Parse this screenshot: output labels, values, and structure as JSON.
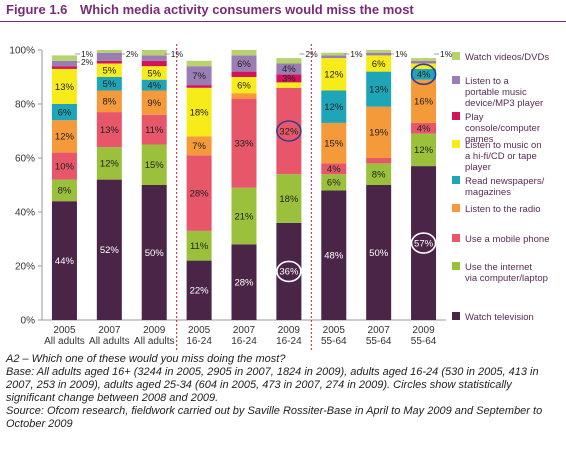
{
  "figure": {
    "number": "Figure 1.6",
    "title": "Which media activity consumers would miss the most"
  },
  "chart_data": {
    "type": "bar",
    "stacked": true,
    "ylim": [
      0,
      100
    ],
    "yticks": [
      "0%",
      "20%",
      "40%",
      "60%",
      "80%",
      "100%"
    ],
    "categories": [
      [
        "2005",
        "All adults"
      ],
      [
        "2007",
        "All adults"
      ],
      [
        "2009",
        "All adults"
      ],
      [
        "2005",
        "16-24"
      ],
      [
        "2007",
        "16-24"
      ],
      [
        "2009",
        "16-24"
      ],
      [
        "2005",
        "55-64"
      ],
      [
        "2007",
        "55-64"
      ],
      [
        "2009",
        "55-64"
      ]
    ],
    "series": [
      {
        "name": "Watch television",
        "color": "#4a2547",
        "values": [
          44,
          52,
          50,
          22,
          28,
          36,
          48,
          50,
          57
        ],
        "labels": [
          "44%",
          "52%",
          "50%",
          "22%",
          "28%",
          "36%",
          "48%",
          "50%",
          "57%"
        ]
      },
      {
        "name": "Use the internet via computer/laptop",
        "color": "#9bc13c",
        "values": [
          8,
          12,
          15,
          11,
          21,
          18,
          6,
          8,
          12
        ],
        "labels": [
          "8%",
          "12%",
          "15%",
          "11%",
          "21%",
          "18%",
          "6%",
          "8%",
          "12%"
        ]
      },
      {
        "name": "Use a mobile phone",
        "color": "#e8566a",
        "values": [
          10,
          13,
          11,
          28,
          33,
          32,
          4,
          2,
          4
        ],
        "labels": [
          "10%",
          "13%",
          "11%",
          "28%",
          "33%",
          "32%",
          "4%",
          "2%",
          "4%"
        ]
      },
      {
        "name": "Listen to the radio",
        "color": "#f59a3a",
        "values": [
          12,
          8,
          9,
          7,
          2,
          0,
          15,
          19,
          16
        ],
        "labels": [
          "12%",
          "8%",
          "9%",
          "7%",
          "2%",
          "",
          "15%",
          "19%",
          "16%"
        ]
      },
      {
        "name": "Read newspapers/ magazines",
        "color": "#1ea6b8",
        "values": [
          6,
          5,
          4,
          0,
          0,
          0,
          12,
          13,
          4
        ],
        "labels": [
          "6%",
          "5%",
          "4%",
          "",
          "",
          "",
          "12%",
          "13%",
          "4%"
        ]
      },
      {
        "name": "Listen to music on a hi-fi/CD or tape player",
        "color": "#f7ec1a",
        "values": [
          13,
          5,
          5,
          18,
          6,
          2,
          12,
          6,
          2
        ],
        "labels": [
          "13%",
          "5%",
          "5%",
          "18%",
          "6%",
          "2%",
          "12%",
          "6%",
          "2%"
        ]
      },
      {
        "name": "Play console/computer games",
        "color": "#d4145a",
        "values": [
          1,
          1,
          2,
          1,
          2,
          3,
          0,
          0,
          0
        ],
        "labels": [
          "1%",
          "1%",
          "2%",
          "1%",
          "2%",
          "3%",
          "",
          "",
          ""
        ]
      },
      {
        "name": "Listen to a portable music device/MP3 player",
        "color": "#9b7db5",
        "values": [
          2,
          3,
          2,
          7,
          6,
          4,
          1,
          1,
          1
        ],
        "labels": [
          "",
          "",
          "",
          "7%",
          "6%",
          "4%",
          "",
          "",
          ""
        ]
      },
      {
        "name": "Watch videos/DVDs",
        "color": "#b8d36e",
        "values": [
          2,
          1,
          2,
          2,
          2,
          2,
          1,
          1,
          1
        ],
        "labels": [
          "2%",
          "1%",
          "2%",
          "2%",
          "2%",
          "2%",
          "1%",
          "1%",
          "1%"
        ]
      }
    ],
    "callouts": [
      {
        "group": 0,
        "text": "1%"
      },
      {
        "group": 0,
        "text": "2%"
      },
      {
        "group": 1,
        "text": "2%"
      },
      {
        "group": 2,
        "text": "1%"
      },
      {
        "group": 5,
        "text": "2%"
      },
      {
        "group": 6,
        "text": "1%"
      },
      {
        "group": 7,
        "text": "1%"
      },
      {
        "group": 8,
        "text": "1%"
      }
    ],
    "circled": [
      {
        "series": 0,
        "group": 5
      },
      {
        "series": 2,
        "group": 5
      },
      {
        "series": 0,
        "group": 8
      },
      {
        "series": 4,
        "group": 8
      }
    ],
    "group_dividers_after": [
      2,
      5
    ],
    "grid": false,
    "legend_position": "right"
  },
  "notes": [
    "A2 – Which one of these would you miss doing the most?",
    "Base: All adults aged 16+ (3244 in 2005, 2905 in 2007, 1824 in 2009), adults aged 16-24 (530 in 2005, 413 in 2007, 253 in 2009), adults aged 25-34 (604 in 2005, 473 in 2007, 274 in 2009). Circles show statistically significant change between 2008 and 2009.",
    "Source: Ofcom research, fieldwork carried out by Saville Rossiter-Base in April to May 2009 and September to October 2009"
  ]
}
